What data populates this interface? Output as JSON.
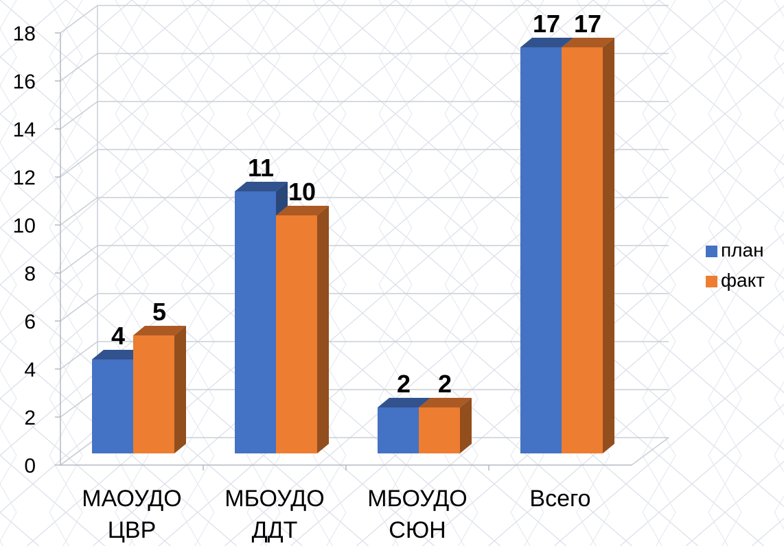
{
  "chart_data": {
    "type": "bar",
    "categories": [
      [
        "МАОУДО",
        "ЦВР"
      ],
      [
        "МБОУДО",
        "ДДТ"
      ],
      [
        "МБОУДО",
        "СЮН"
      ],
      [
        "Всего"
      ]
    ],
    "series": [
      {
        "name": "план",
        "values": [
          4,
          11,
          2,
          17
        ],
        "color": "#4472C4"
      },
      {
        "name": "факт",
        "values": [
          5,
          10,
          2,
          17
        ],
        "color": "#ED7D31"
      }
    ],
    "y_ticks": [
      "0",
      "2",
      "4",
      "6",
      "8",
      "10",
      "12",
      "14",
      "16",
      "18"
    ],
    "ylim": [
      0,
      18
    ],
    "grid": true,
    "legend_position": "right",
    "style": "3d-clustered-column"
  }
}
